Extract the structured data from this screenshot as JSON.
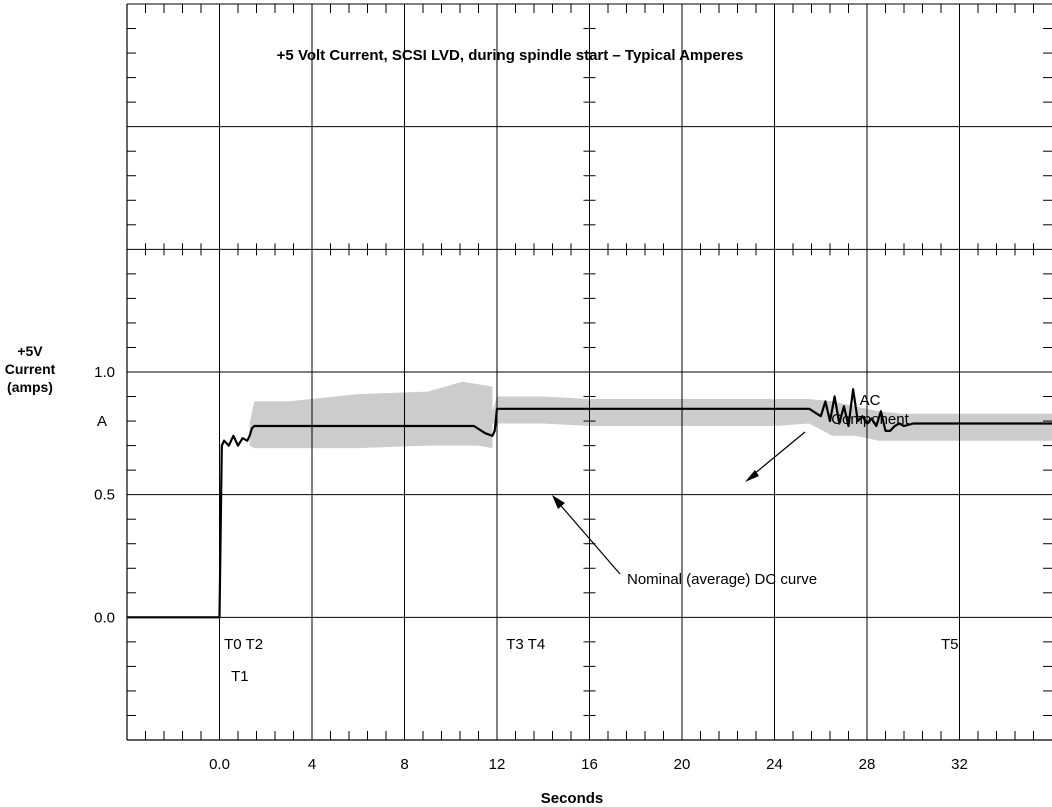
{
  "chart_data": {
    "type": "line",
    "title": "+5 Volt Current, SCSI LVD, during spindle start – Typical Amperes",
    "xlabel": "Seconds",
    "ylabel_lines": [
      "+5V",
      "Current",
      "(amps)"
    ],
    "y_unit_label": "A",
    "xlim": [
      -4,
      36
    ],
    "ylim": [
      -0.5,
      2.5
    ],
    "x_ticks": [
      0,
      4,
      8,
      12,
      16,
      20,
      24,
      28,
      32
    ],
    "x_tick_labels": [
      "0.0",
      "4",
      "8",
      "12",
      "16",
      "20",
      "24",
      "28",
      "32"
    ],
    "y_ticks": [
      0,
      0.5,
      1.0
    ],
    "y_tick_labels": [
      "0.0",
      "0.5",
      "1.0"
    ],
    "grid": true,
    "series": [
      {
        "name": "Nominal (average) DC curve",
        "x": [
          -4,
          0.0,
          0.1,
          0.2,
          0.4,
          0.6,
          0.8,
          1.0,
          1.2,
          1.3,
          1.4,
          1.5,
          2,
          3,
          4,
          5,
          6,
          7,
          8,
          9,
          10,
          10.5,
          11,
          11.5,
          11.8,
          11.9,
          12.0,
          14,
          16,
          18,
          20,
          22,
          24,
          25.5,
          26.0,
          26.2,
          26.4,
          26.6,
          26.8,
          27.0,
          27.2,
          27.4,
          27.6,
          27.8,
          28.0,
          28.2,
          28.4,
          28.6,
          28.8,
          29.0,
          29.2,
          29.4,
          29.6,
          30,
          32,
          34,
          36
        ],
        "y": [
          0,
          0,
          0.7,
          0.72,
          0.7,
          0.74,
          0.7,
          0.73,
          0.72,
          0.74,
          0.77,
          0.78,
          0.78,
          0.78,
          0.78,
          0.78,
          0.78,
          0.78,
          0.78,
          0.78,
          0.78,
          0.78,
          0.78,
          0.75,
          0.74,
          0.76,
          0.85,
          0.85,
          0.85,
          0.85,
          0.85,
          0.85,
          0.85,
          0.85,
          0.82,
          0.88,
          0.8,
          0.9,
          0.79,
          0.86,
          0.78,
          0.93,
          0.8,
          0.82,
          0.79,
          0.81,
          0.78,
          0.84,
          0.76,
          0.76,
          0.78,
          0.79,
          0.78,
          0.79,
          0.79,
          0.79,
          0.79
        ]
      },
      {
        "name": "AC Component",
        "x": [
          1.3,
          1.5,
          3,
          6,
          9,
          10.5,
          11.2,
          11.8,
          11.8,
          12.0,
          14,
          16,
          20,
          24,
          25.5,
          26.5,
          27.5,
          28.5,
          29.5,
          30.5,
          32,
          36
        ],
        "upper": [
          0.79,
          0.88,
          0.88,
          0.91,
          0.92,
          0.96,
          0.95,
          0.94,
          0.84,
          0.9,
          0.9,
          0.89,
          0.89,
          0.89,
          0.89,
          0.88,
          0.86,
          0.84,
          0.83,
          0.83,
          0.83,
          0.83
        ],
        "lower": [
          0.7,
          0.69,
          0.69,
          0.69,
          0.7,
          0.7,
          0.7,
          0.69,
          0.79,
          0.79,
          0.79,
          0.78,
          0.78,
          0.78,
          0.79,
          0.74,
          0.74,
          0.72,
          0.72,
          0.72,
          0.72,
          0.72
        ]
      }
    ],
    "annotations": {
      "ac_component_lines": [
        "AC",
        "Component"
      ],
      "dc_curve_label": "Nominal (average) DC curve",
      "time_markers": [
        {
          "label": "T0 T2",
          "x": 0.2,
          "y": -0.13
        },
        {
          "label": "T1",
          "x": 0.5,
          "y": -0.26
        },
        {
          "label": "T3 T4",
          "x": 12.4,
          "y": -0.13
        },
        {
          "label": "T5",
          "x": 31.2,
          "y": -0.13
        }
      ]
    }
  },
  "colors": {
    "line": "#000000",
    "band": "#cccccc",
    "grid": "#000000",
    "background": "#ffffff"
  }
}
